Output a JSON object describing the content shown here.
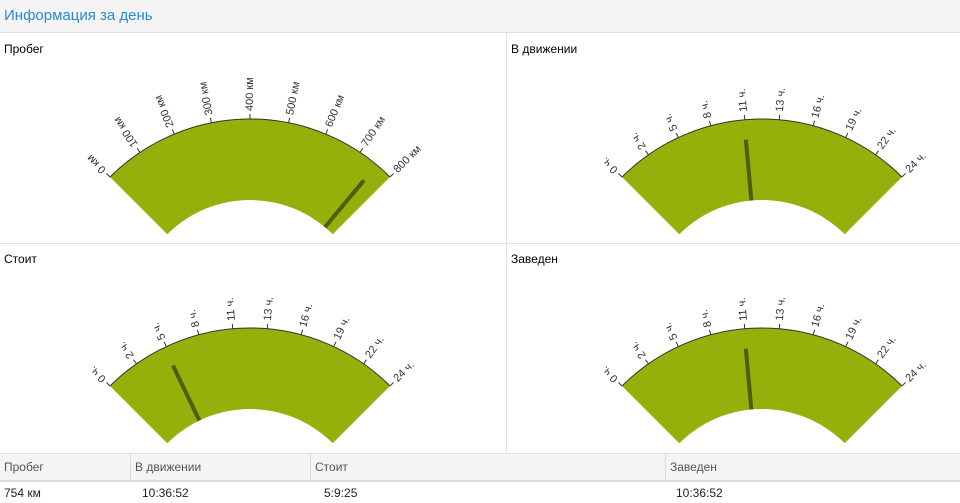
{
  "header": {
    "title": "Информация за день"
  },
  "colors": {
    "gauge_fill": "#94b00a",
    "needle": "#4d5e05",
    "title": "#2a8ad8"
  },
  "gauges": [
    {
      "title": "Пробег",
      "min": 0,
      "max": 800,
      "value": 754,
      "ticks": [
        "0 км",
        "100 км",
        "200 км",
        "300 км",
        "400 км",
        "500 км",
        "600 км",
        "700 км",
        "800 км"
      ]
    },
    {
      "title": "В движении",
      "min": 0,
      "max": 24,
      "value": 10.61,
      "ticks": [
        "0 ч.",
        "2 ч.",
        "5 ч.",
        "8 ч.",
        "11 ч.",
        "13 ч.",
        "16 ч.",
        "19 ч.",
        "22 ч.",
        "24 ч."
      ]
    },
    {
      "title": "Стоит",
      "min": 0,
      "max": 24,
      "value": 5.16,
      "ticks": [
        "0 ч.",
        "2 ч.",
        "5 ч.",
        "8 ч.",
        "11 ч.",
        "13 ч.",
        "16 ч.",
        "19 ч.",
        "22 ч.",
        "24 ч."
      ]
    },
    {
      "title": "Заведен",
      "min": 0,
      "max": 24,
      "value": 10.61,
      "ticks": [
        "0 ч.",
        "2 ч.",
        "5 ч.",
        "8 ч.",
        "11 ч.",
        "13 ч.",
        "16 ч.",
        "19 ч.",
        "22 ч.",
        "24 ч."
      ]
    }
  ],
  "table": {
    "headers": [
      "Пробег",
      "В движении",
      "Стоит",
      "Заведен"
    ],
    "row": [
      "754 км",
      "10:36:52",
      "5:9:25",
      "10:36:52"
    ]
  }
}
